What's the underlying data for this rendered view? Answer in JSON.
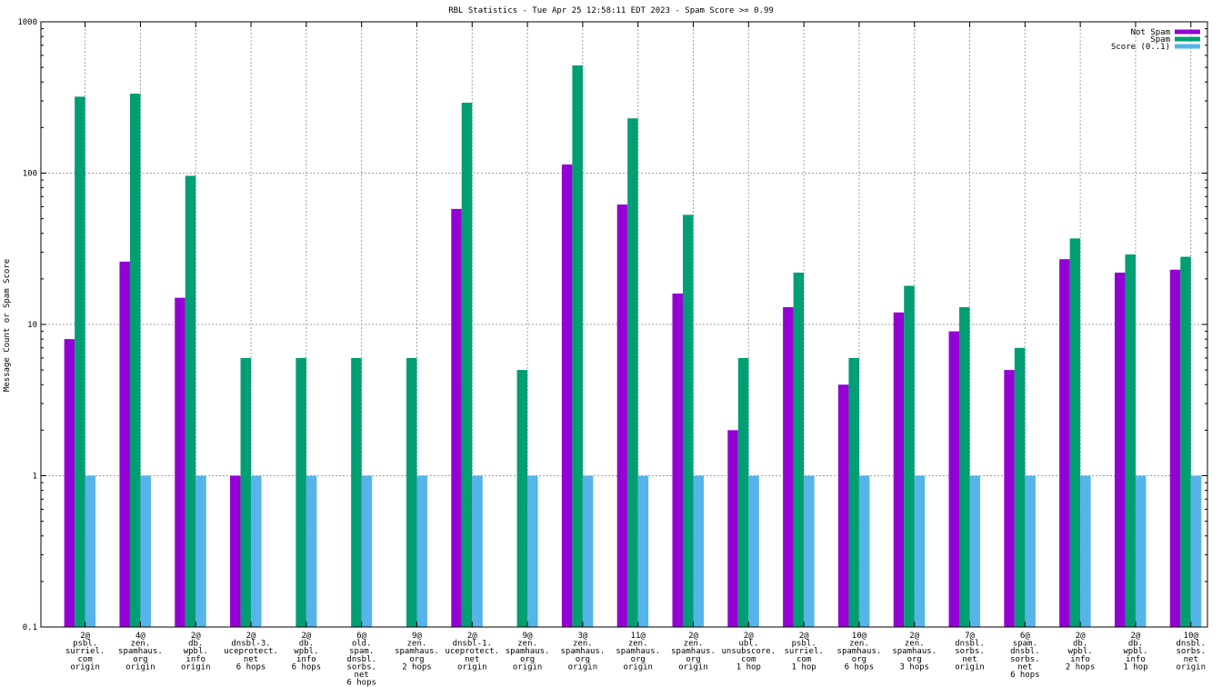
{
  "chart_data": {
    "type": "bar",
    "title": "RBL Statistics - Tue Apr 25 12:58:11 EDT 2023 - Spam Score >= 0.99",
    "xlabel": "",
    "ylabel": "Message Count or Spam Score",
    "yscale": "log",
    "ylim": [
      0.1,
      1000
    ],
    "yticks": [
      "0.1",
      "1",
      "10",
      "100",
      "1000"
    ],
    "grid": true,
    "legend_position": "top-right",
    "categories": [
      [
        "2@",
        "psbl.",
        "surriel.",
        "com",
        "origin"
      ],
      [
        "4@",
        "zen.",
        "spamhaus.",
        "org",
        "origin"
      ],
      [
        "2@",
        "db.",
        "wpbl.",
        "info",
        "origin"
      ],
      [
        "2@",
        "dnsbl-3.",
        "uceprotect.",
        "net",
        "6 hops"
      ],
      [
        "2@",
        "db.",
        "wpbl.",
        "info",
        "6 hops"
      ],
      [
        "6@",
        "old.",
        "spam.",
        "dnsbl.",
        "sorbs.",
        "net",
        "6 hops"
      ],
      [
        "9@",
        "zen.",
        "spamhaus.",
        "org",
        "2 hops"
      ],
      [
        "2@",
        "dnsbl-1.",
        "uceprotect.",
        "net",
        "origin"
      ],
      [
        "9@",
        "zen.",
        "spamhaus.",
        "org",
        "origin"
      ],
      [
        "3@",
        "zen.",
        "spamhaus.",
        "org",
        "origin"
      ],
      [
        "11@",
        "zen.",
        "spamhaus.",
        "org",
        "origin"
      ],
      [
        "2@",
        "zen.",
        "spamhaus.",
        "org",
        "origin"
      ],
      [
        "2@",
        "ubl.",
        "unsubscore.",
        "com",
        "1 hop"
      ],
      [
        "2@",
        "psbl.",
        "surriel.",
        "com",
        "1 hop"
      ],
      [
        "10@",
        "zen.",
        "spamhaus.",
        "org",
        "6 hops"
      ],
      [
        "2@",
        "zen.",
        "spamhaus.",
        "org",
        "3 hops"
      ],
      [
        "7@",
        "dnsbl.",
        "sorbs.",
        "net",
        "origin"
      ],
      [
        "6@",
        "spam.",
        "dnsbl.",
        "sorbs.",
        "net",
        "6 hops"
      ],
      [
        "2@",
        "db.",
        "wpbl.",
        "info",
        "2 hops"
      ],
      [
        "2@",
        "db.",
        "wpbl.",
        "info",
        "1 hop"
      ],
      [
        "10@",
        "dnsbl.",
        "sorbs.",
        "net",
        "origin"
      ]
    ],
    "series": [
      {
        "name": "Not Spam",
        "color": "#9400d3",
        "values": [
          8,
          26,
          15,
          1,
          null,
          null,
          null,
          58,
          null,
          114,
          62,
          16,
          2,
          13,
          4,
          12,
          9,
          5,
          27,
          22,
          23
        ]
      },
      {
        "name": "Spam",
        "color": "#009e73",
        "values": [
          320,
          335,
          96,
          6,
          6,
          6,
          6,
          292,
          5,
          515,
          230,
          53,
          6,
          22,
          6,
          18,
          13,
          7,
          37,
          29,
          28
        ]
      },
      {
        "name": "Score (0..1)",
        "color": "#56b4e9",
        "values": [
          1,
          1,
          1,
          1,
          1,
          1,
          1,
          1,
          1,
          1,
          1,
          1,
          1,
          1,
          1,
          1,
          1,
          1,
          1,
          1,
          1
        ]
      }
    ]
  }
}
